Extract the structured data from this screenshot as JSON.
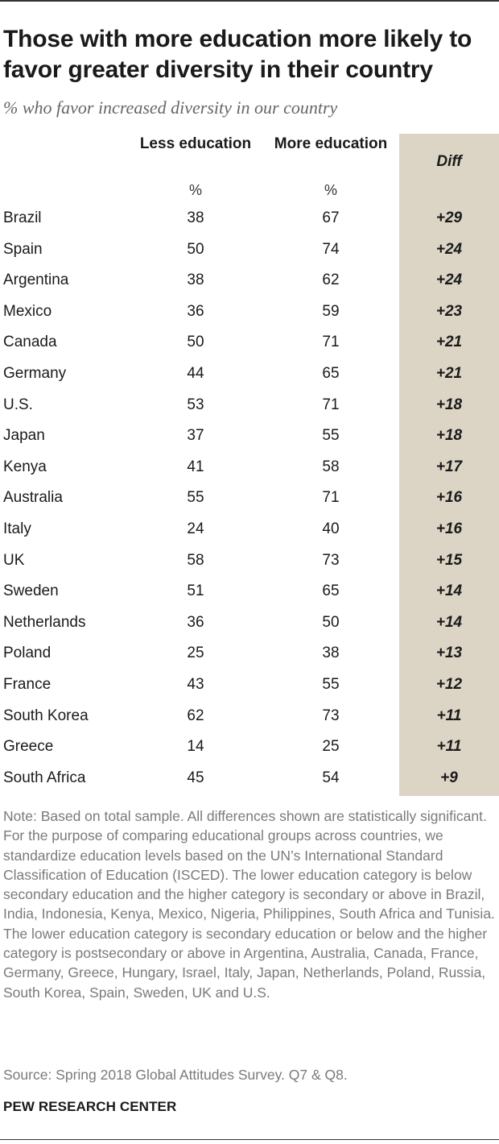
{
  "title": "Those with more education more likely to favor greater diversity in their country",
  "subtitle": "% who favor increased diversity in our country",
  "columns": {
    "less": "Less education",
    "more": "More education",
    "diff": "Diff",
    "unit": "%"
  },
  "chart_data": {
    "type": "table",
    "title": "Those with more education more likely to favor greater diversity in their country",
    "subtitle": "% who favor increased diversity in our country",
    "columns": [
      "Less education",
      "More education",
      "Diff"
    ],
    "rows": [
      {
        "country": "Brazil",
        "less": 38,
        "more": 67,
        "diff": "+29"
      },
      {
        "country": "Spain",
        "less": 50,
        "more": 74,
        "diff": "+24"
      },
      {
        "country": "Argentina",
        "less": 38,
        "more": 62,
        "diff": "+24"
      },
      {
        "country": "Mexico",
        "less": 36,
        "more": 59,
        "diff": "+23"
      },
      {
        "country": "Canada",
        "less": 50,
        "more": 71,
        "diff": "+21"
      },
      {
        "country": "Germany",
        "less": 44,
        "more": 65,
        "diff": "+21"
      },
      {
        "country": "U.S.",
        "less": 53,
        "more": 71,
        "diff": "+18"
      },
      {
        "country": "Japan",
        "less": 37,
        "more": 55,
        "diff": "+18"
      },
      {
        "country": "Kenya",
        "less": 41,
        "more": 58,
        "diff": "+17"
      },
      {
        "country": "Australia",
        "less": 55,
        "more": 71,
        "diff": "+16"
      },
      {
        "country": "Italy",
        "less": 24,
        "more": 40,
        "diff": "+16"
      },
      {
        "country": "UK",
        "less": 58,
        "more": 73,
        "diff": "+15"
      },
      {
        "country": "Sweden",
        "less": 51,
        "more": 65,
        "diff": "+14"
      },
      {
        "country": "Netherlands",
        "less": 36,
        "more": 50,
        "diff": "+14"
      },
      {
        "country": "Poland",
        "less": 25,
        "more": 38,
        "diff": "+13"
      },
      {
        "country": "France",
        "less": 43,
        "more": 55,
        "diff": "+12"
      },
      {
        "country": "South Korea",
        "less": 62,
        "more": 73,
        "diff": "+11"
      },
      {
        "country": "Greece",
        "less": 14,
        "more": 25,
        "diff": "+11"
      },
      {
        "country": "South Africa",
        "less": 45,
        "more": 54,
        "diff": "+9"
      }
    ]
  },
  "note": "Note: Based on total sample. All differences shown are statistically significant. For the purpose of comparing educational groups across countries, we standardize education levels based on the UN’s International Standard Classification of Education (ISCED). The lower education category is below secondary education and the higher category is secondary or above in Brazil, India, Indonesia, Kenya, Mexico, Nigeria, Philippines, South Africa and Tunisia. The lower education category is secondary education or below and the higher category is postsecondary or above in Argentina, Australia, Canada, France, Germany, Greece, Hungary, Israel, Italy, Japan, Netherlands, Poland, Russia, South Korea, Spain, Sweden, UK and U.S.",
  "source": "Source: Spring 2018 Global Attitudes Survey. Q7 & Q8.",
  "brand": "PEW RESEARCH CENTER",
  "colors": {
    "diff_column_bg": "#dcd5c6",
    "title": "#1a1a1a",
    "subtitle": "#666666",
    "note": "#7a7a7a"
  }
}
